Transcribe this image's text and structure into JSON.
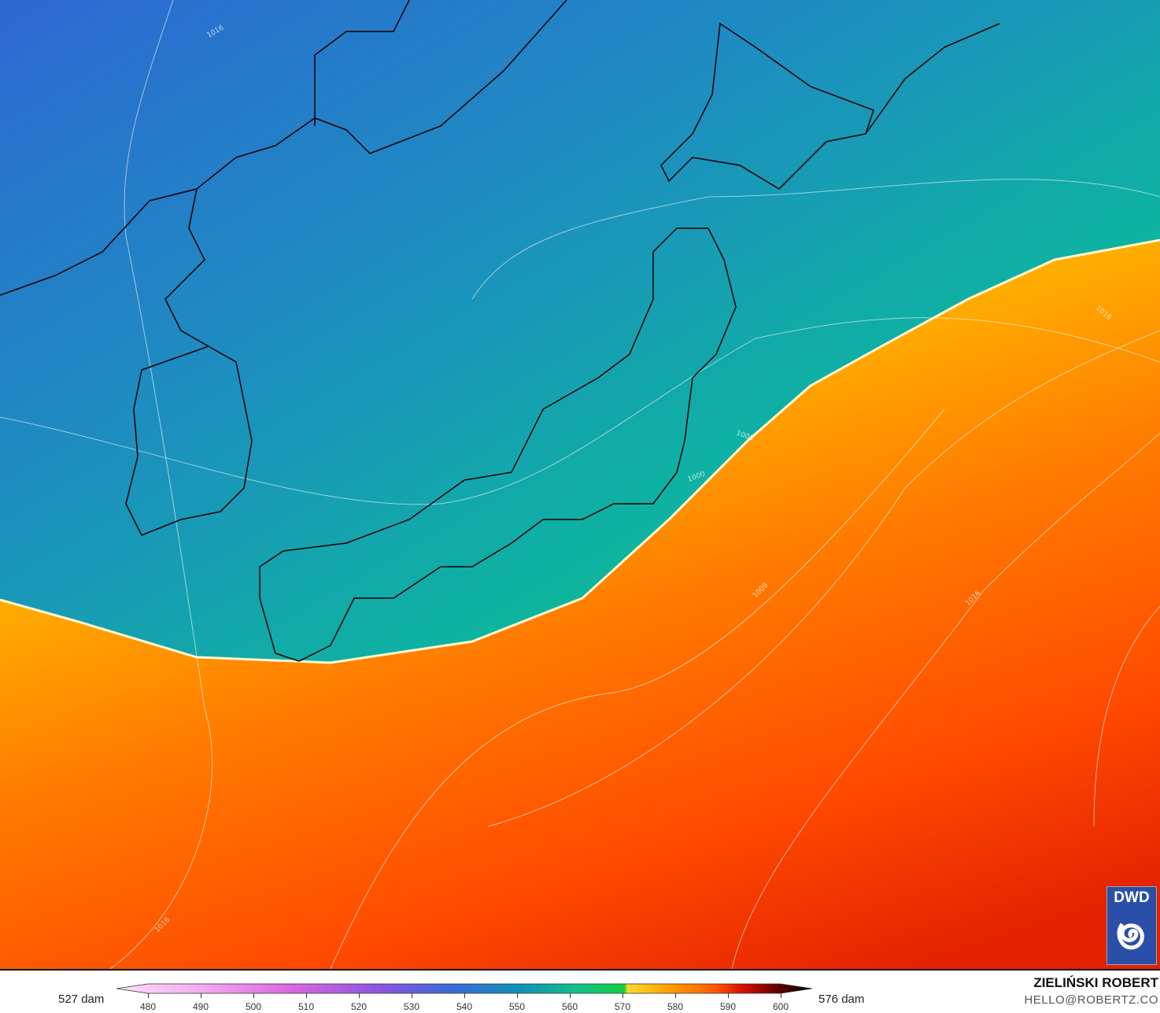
{
  "legend": {
    "min_label": "527 dam",
    "max_label": "576 dam",
    "ticks": [
      "480",
      "490",
      "500",
      "510",
      "520",
      "530",
      "540",
      "550",
      "560",
      "570",
      "580",
      "590",
      "600"
    ]
  },
  "credits": {
    "author": "ZIELIŃSKI ROBERT",
    "email": "HELLO@ROBERTZ.CO"
  },
  "logo": {
    "text": "DWD"
  },
  "contour_labels": [
    "1016",
    "1016",
    "1008",
    "1000",
    "1000",
    "1016",
    "1016"
  ],
  "colors": {
    "cold": "#2a6fd0",
    "mid": "#0fb0a0",
    "green": "#10d040",
    "front": "#ffd21e",
    "warm": "#ff7a00",
    "hot": "#e62400"
  }
}
